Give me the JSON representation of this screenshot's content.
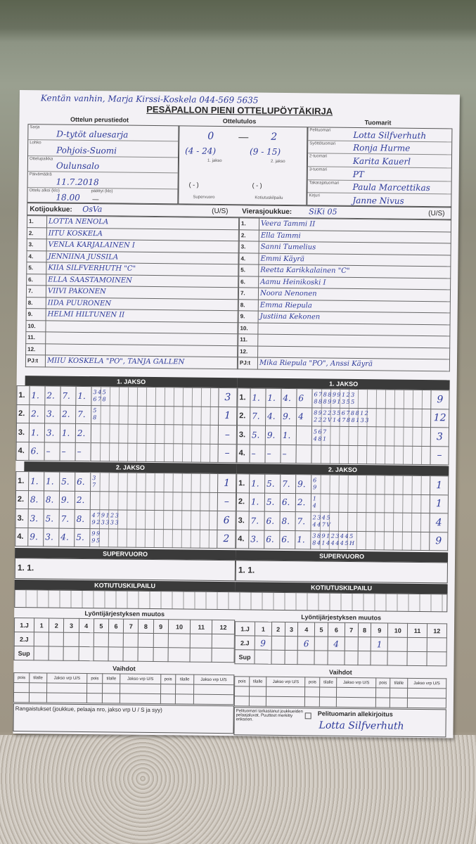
{
  "note": "Kentän vanhin, Marja Kirssi-Koskela 044-569 5635",
  "title": "PESÄPALLON PIENI OTTELUPÖYTÄKIRJA",
  "sections": {
    "basic": "Ottelun perustiedot",
    "result": "Ottelutulos",
    "referees": "Tuomarit"
  },
  "basic": [
    {
      "label": "Sarja",
      "value": "D-tytöt aluesarja"
    },
    {
      "label": "Lohko",
      "value": "Pohjois-Suomi"
    },
    {
      "label": "Ottelupaikka",
      "value": "Oulunsalo"
    },
    {
      "label": "Päivämäärä",
      "value": "11.7.2018"
    },
    {
      "label": "Ottelu alkoi (klo)",
      "value": "18.00",
      "label2": "päättyi (klo)",
      "value2": "—"
    }
  ],
  "result": {
    "home": "0",
    "away": "2",
    "jakso1": "(4 - 24)",
    "jakso2": "(9 - 15)",
    "jakso1_label": "1. jakso",
    "jakso2_label": "2. jakso",
    "super": "(  -  )",
    "koti": "(  -  )",
    "super_label": "Supervuoro",
    "koti_label": "Kotiutuskilpailu"
  },
  "referees": [
    {
      "label": "Pelituomari",
      "value": "Lotta Silfverhuth"
    },
    {
      "label": "Syöttötuomari",
      "value": "Ronja Hurme"
    },
    {
      "label": "2-tuomari",
      "value": "Karita Kauerl"
    },
    {
      "label": "3-tuomari",
      "value": "PT"
    },
    {
      "label": "Takarajatuomari",
      "value": "Paula Marcettikas"
    },
    {
      "label": "Kirjuri",
      "value": "Janne Nivus"
    }
  ],
  "home": {
    "label": "Kotijoukkue:",
    "name": "OsVa",
    "us": "(U/S)",
    "pj_label": "PJ:t",
    "pj": "MIIU KOSKELA \"PO\", TANJA GALLEN",
    "players": [
      "LOTTA NENOLA",
      "IITU KOSKELA",
      "VENLA KARJALAINEN   I",
      "JENNIINA JUSSILA",
      "KIIA SILFVERHUTH \"C\"",
      "ELLA SAASTAMOINEN",
      "VIIVI PAKONEN",
      "IIDA PUURONEN",
      "HELMI HILTUNEN   II",
      "",
      "",
      ""
    ]
  },
  "away": {
    "label": "Vierasjoukkue:",
    "name": "SiKi 05",
    "us": "(U/S)",
    "pj_label": "PJ:t",
    "pj": "Mika Riepula \"PO\", Anssi Käyrä",
    "players": [
      "Veera Tammi   II",
      "Ella Tammi",
      "Sanni Tumelius",
      "Emmi Käyrä",
      "Reetta Karikkalainen \"C\"",
      "Aamu Heinikoski   I",
      "Noora Nenonen",
      "Emma Riepula",
      "Justiina Kekonen",
      "",
      "",
      ""
    ]
  },
  "row_numbers": [
    "1.",
    "2.",
    "3.",
    "4.",
    "5.",
    "6.",
    "7.",
    "8.",
    "9.",
    "10.",
    "11.",
    "12."
  ],
  "jakso1": "1. JAKSO",
  "jakso2": "2. JAKSO",
  "supervuoro": "SUPERVUORO",
  "kotiutus": "KOTIUTUSKILPAILU",
  "innings": {
    "home1": [
      {
        "n": "1.",
        "b": [
          "1.",
          "2.",
          "7.",
          "1."
        ],
        "top": "345",
        "bot": "678",
        "t": "3"
      },
      {
        "n": "2.",
        "b": [
          "2.",
          "3.",
          "2.",
          "7."
        ],
        "top": "5",
        "bot": "8",
        "t": "1"
      },
      {
        "n": "3.",
        "b": [
          "1.",
          "3.",
          "1.",
          "2."
        ],
        "top": "",
        "bot": "",
        "t": "–"
      },
      {
        "n": "4.",
        "b": [
          "6.",
          "–",
          "–",
          "–"
        ],
        "top": "",
        "bot": "",
        "t": "–"
      }
    ],
    "away1": [
      {
        "n": "1.",
        "b": [
          "1.",
          "1.",
          "4.",
          "6"
        ],
        "top": "678899123",
        "bot": "888991355",
        "t": "9"
      },
      {
        "n": "2.",
        "b": [
          "7.",
          "4.",
          "9.",
          "4"
        ],
        "top": "892235678812",
        "bot": "222V14788133",
        "t": "12"
      },
      {
        "n": "3.",
        "b": [
          "5.",
          "9.",
          "1.",
          ""
        ],
        "top": "567",
        "bot": "481",
        "t": "3"
      },
      {
        "n": "4.",
        "b": [
          "–",
          "–",
          "–",
          ""
        ],
        "top": "",
        "bot": "",
        "t": "–"
      }
    ],
    "home2": [
      {
        "n": "1.",
        "b": [
          "1.",
          "1.",
          "5.",
          "6."
        ],
        "top": "3",
        "bot": "7",
        "t": "1"
      },
      {
        "n": "2.",
        "b": [
          "8.",
          "8.",
          "9.",
          "2."
        ],
        "top": "",
        "bot": "",
        "t": "–"
      },
      {
        "n": "3.",
        "b": [
          "3.",
          "5.",
          "7.",
          "8."
        ],
        "top": "479123",
        "bot": "923333",
        "t": "6"
      },
      {
        "n": "4.",
        "b": [
          "9.",
          "3.",
          "4.",
          "5."
        ],
        "top": "99",
        "bot": "95",
        "t": "2"
      }
    ],
    "away2": [
      {
        "n": "1.",
        "b": [
          "1.",
          "5.",
          "7.",
          "9."
        ],
        "top": "6",
        "bot": "9",
        "t": "1"
      },
      {
        "n": "2.",
        "b": [
          "1.",
          "5.",
          "6.",
          "2."
        ],
        "top": "1",
        "bot": "4",
        "t": "1"
      },
      {
        "n": "3.",
        "b": [
          "7.",
          "6.",
          "8.",
          "7."
        ],
        "top": "2345",
        "bot": "447V",
        "t": "4"
      },
      {
        "n": "4.",
        "b": [
          "3.",
          "6.",
          "6.",
          "1."
        ],
        "top": "389123445",
        "bot": "84144445H",
        "t": "9"
      }
    ]
  },
  "super_row": [
    "1.",
    "1."
  ],
  "order_change": {
    "title": "Lyöntijärjestyksen muutos",
    "rows": [
      "1.J",
      "2.J",
      "Sup"
    ],
    "cols": [
      "1",
      "2",
      "3",
      "4",
      "5",
      "6",
      "7",
      "8",
      "9",
      "10",
      "11",
      "12"
    ],
    "home_2j": [
      "",
      "",
      "",
      "",
      "",
      "",
      "",
      "",
      "",
      "",
      "",
      ""
    ],
    "away_2j": [
      "9",
      "",
      "",
      "6",
      "",
      "4",
      "",
      "",
      "1",
      "",
      "",
      ""
    ]
  },
  "subs": {
    "title": "Vaihdot",
    "cols": [
      "pois",
      "tilalle",
      "Jakso vrp U/S"
    ]
  },
  "penalties": "Rangaistukset (joukkue, pelaaja nro, jakso vrp U / S ja syy)",
  "check_text": "Pelituomari tarkastanut joukkueiden pelaajaluvat. Puutteet merkitty erikseen.",
  "signature_label": "Pelituomarin allekirjoitus",
  "signature": "Lotta Silfverhuth"
}
